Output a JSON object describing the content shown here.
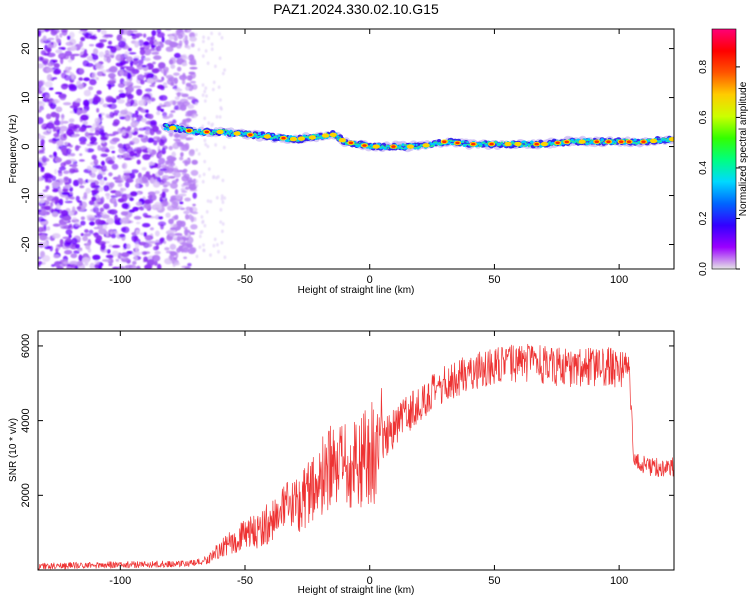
{
  "figure": {
    "title": "PAZ1.2024.330.02.10.G15"
  },
  "chart_data": [
    {
      "type": "heatmap",
      "xlabel": "Height of straight line (km)",
      "ylabel": "Frequency (Hz)",
      "xlim": [
        -133,
        122
      ],
      "ylim": [
        -25,
        24
      ],
      "xticks": [
        -100,
        -50,
        0,
        50,
        100
      ],
      "yticks": [
        -20,
        -10,
        0,
        10,
        20
      ],
      "grid": false,
      "colorbar": {
        "label": "Normalized spectral amplitude",
        "range": [
          0,
          0.95
        ],
        "ticks": [
          0.0,
          0.2,
          0.4,
          0.6,
          0.8
        ]
      },
      "ridge": {
        "x_start": -82,
        "x_end": 122,
        "points": [
          {
            "x": -82,
            "y": 4
          },
          {
            "x": -75,
            "y": 3.5
          },
          {
            "x": -70,
            "y": 3
          },
          {
            "x": -60,
            "y": 3
          },
          {
            "x": -50,
            "y": 2.5
          },
          {
            "x": -40,
            "y": 2
          },
          {
            "x": -30,
            "y": 1.5
          },
          {
            "x": -20,
            "y": 2
          },
          {
            "x": -15,
            "y": 2.5
          },
          {
            "x": -10,
            "y": 1
          },
          {
            "x": 0,
            "y": 0
          },
          {
            "x": 10,
            "y": 0
          },
          {
            "x": 20,
            "y": 0
          },
          {
            "x": 30,
            "y": 1
          },
          {
            "x": 40,
            "y": 0.5
          },
          {
            "x": 50,
            "y": 0.5
          },
          {
            "x": 60,
            "y": 0.5
          },
          {
            "x": 70,
            "y": 0.5
          },
          {
            "x": 80,
            "y": 1
          },
          {
            "x": 90,
            "y": 1
          },
          {
            "x": 100,
            "y": 1
          },
          {
            "x": 110,
            "y": 1
          },
          {
            "x": 122,
            "y": 1.5
          }
        ]
      },
      "noise_region": {
        "x_range": [
          -133,
          -70
        ],
        "y_range": [
          -25,
          24
        ]
      }
    },
    {
      "type": "line",
      "xlabel": "Height of straight line (km)",
      "ylabel": "SNR (10 * v/v)",
      "xlim": [
        -133,
        122
      ],
      "ylim": [
        0,
        6400
      ],
      "xticks": [
        -100,
        -50,
        0,
        50,
        100
      ],
      "yticks": [
        2000,
        4000,
        6000
      ],
      "grid": false,
      "series": [
        {
          "color": "#ee3333",
          "x": [
            -133,
            -120,
            -110,
            -100,
            -90,
            -80,
            -70,
            -65,
            -60,
            -55,
            -50,
            -45,
            -40,
            -35,
            -30,
            -25,
            -20,
            -15,
            -10,
            -5,
            0,
            5,
            10,
            15,
            20,
            25,
            30,
            35,
            40,
            45,
            50,
            55,
            60,
            65,
            70,
            75,
            80,
            85,
            90,
            95,
            100,
            104,
            106,
            110,
            115,
            122
          ],
          "values": [
            100,
            120,
            130,
            140,
            150,
            160,
            180,
            280,
            550,
            750,
            950,
            1050,
            1300,
            1550,
            1750,
            2050,
            2400,
            2700,
            2700,
            2900,
            3100,
            3450,
            3800,
            4200,
            4450,
            4700,
            4950,
            5150,
            5300,
            5400,
            5450,
            5500,
            5550,
            5550,
            5500,
            5450,
            5400,
            5450,
            5400,
            5450,
            5400,
            5400,
            2900,
            2800,
            2750,
            2750
          ]
        }
      ]
    }
  ],
  "colors": {
    "line": "#ee3333",
    "axis": "#000000",
    "colormap": [
      "#e5e5e5",
      "#9b00ff",
      "#3300ff",
      "#0066ff",
      "#00d9ff",
      "#00ff80",
      "#33ff00",
      "#ccff00",
      "#ffcc00",
      "#ff5500",
      "#ff0000",
      "#ff0077"
    ]
  }
}
